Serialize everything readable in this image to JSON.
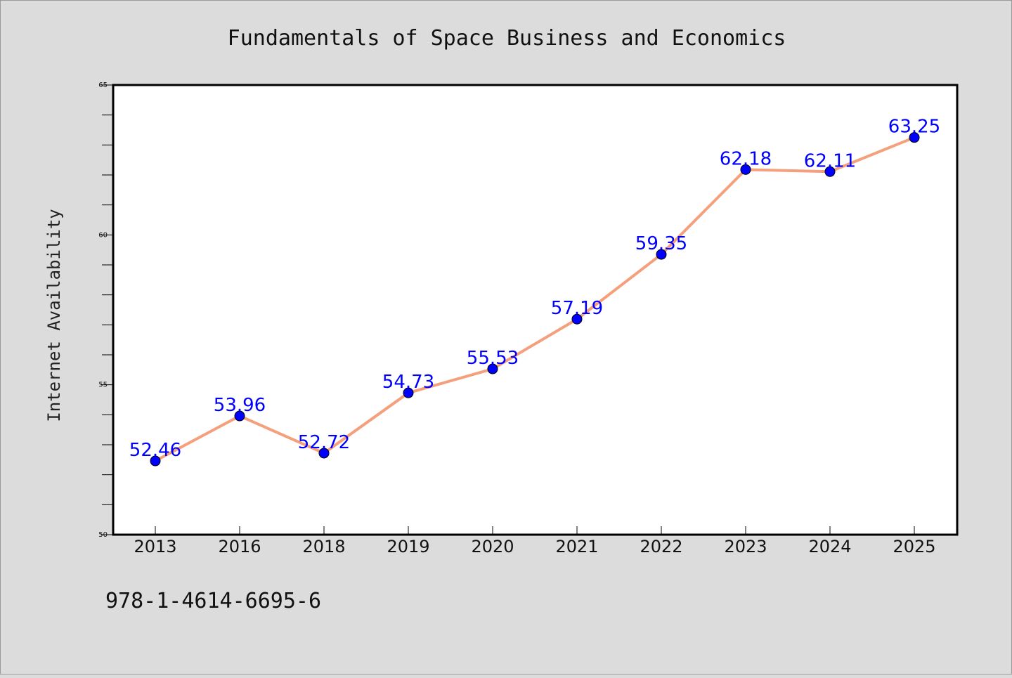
{
  "colors": {
    "background": "#dcdcdc",
    "plot_background": "#ffffff",
    "line": "#f4a07c",
    "marker": "#0000ff",
    "data_label": "#0000ff",
    "axis": "#000000"
  },
  "footer": {
    "isbn": "978-1-4614-6695-6"
  },
  "chart_data": {
    "type": "line",
    "title": "Fundamentals of Space Business and Economics",
    "xlabel": "",
    "ylabel": "Internet Availability",
    "categories": [
      "2013",
      "2016",
      "2018",
      "2019",
      "2020",
      "2021",
      "2022",
      "2023",
      "2024",
      "2025"
    ],
    "series": [
      {
        "values": [
          52.46,
          53.96,
          52.72,
          54.73,
          55.53,
          57.19,
          59.35,
          62.18,
          62.11,
          63.25
        ]
      }
    ],
    "ylim": [
      50,
      65
    ],
    "yticks": [
      "50",
      "55",
      "60",
      "65"
    ],
    "data_labels": [
      "52.46",
      "53.96",
      "52.72",
      "54.73",
      "55.53",
      "57.19",
      "59.35",
      "62.18",
      "62.11",
      "63.25"
    ],
    "grid": false,
    "legend": "none"
  }
}
